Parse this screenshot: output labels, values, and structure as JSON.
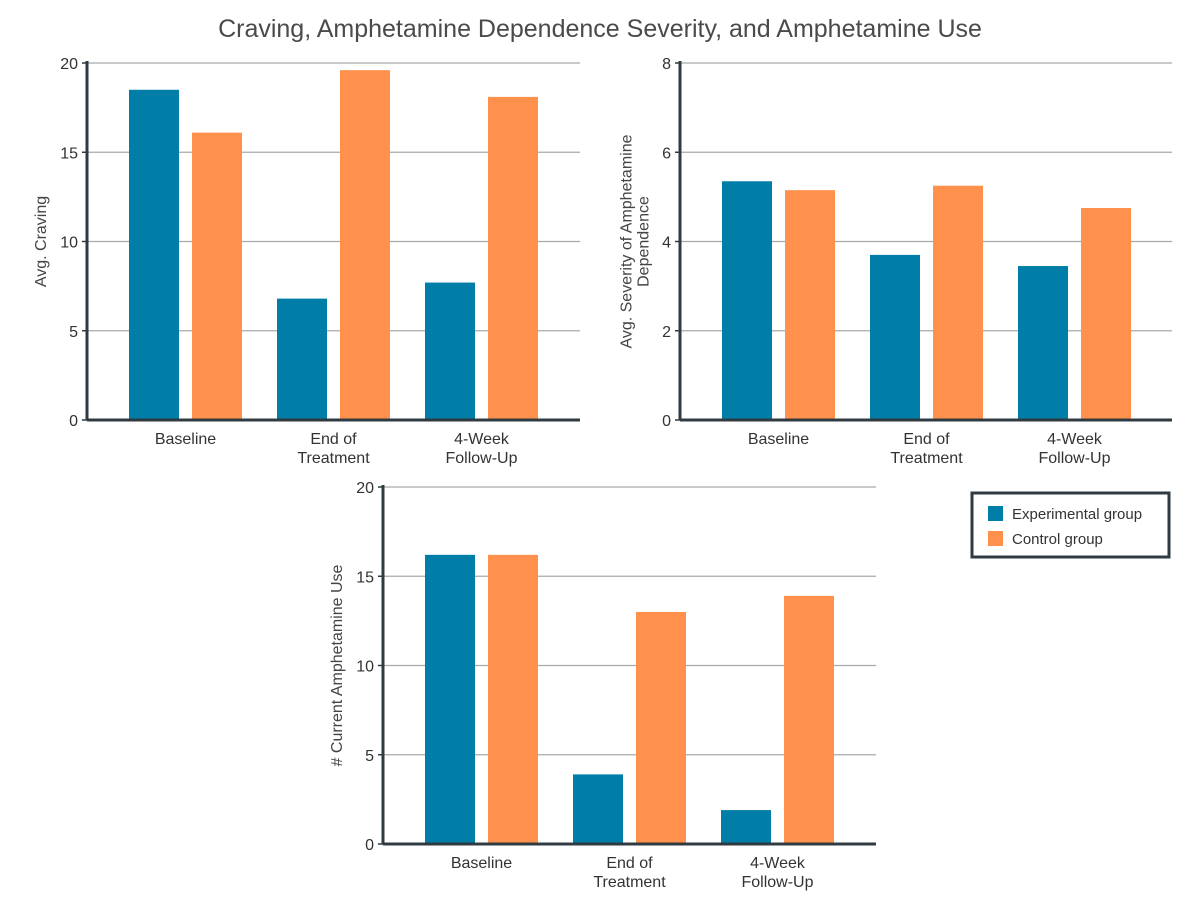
{
  "figure": {
    "title": "Craving, Amphetamine Dependence Severity, and Amphetamine Use",
    "legend": {
      "placement": "right of bottom chart",
      "items": [
        {
          "label": "Experimental group",
          "color": "#007ea7"
        },
        {
          "label": "Control group",
          "color": "#ff914d"
        }
      ]
    }
  },
  "chart_data": [
    {
      "type": "bar",
      "categories": [
        [
          "Baseline"
        ],
        [
          "End of",
          "Treatment"
        ],
        [
          "4-Week",
          "Follow-Up"
        ]
      ],
      "ylabel_lines": [
        "Avg. Craving"
      ],
      "ylim": [
        0,
        20
      ],
      "yticks": [
        0,
        5,
        10,
        15,
        20
      ],
      "grid": true,
      "series": [
        {
          "name": "Experimental group",
          "color": "#007ea7",
          "values": [
            18.5,
            6.8,
            7.7
          ]
        },
        {
          "name": "Control group",
          "color": "#ff914d",
          "values": [
            16.1,
            19.6,
            18.1
          ]
        }
      ]
    },
    {
      "type": "bar",
      "categories": [
        [
          "Baseline"
        ],
        [
          "End of",
          "Treatment"
        ],
        [
          "4-Week",
          "Follow-Up"
        ]
      ],
      "ylabel_lines": [
        "Avg. Severity of Amphetamine",
        "Dependence"
      ],
      "ylim": [
        0,
        8
      ],
      "yticks": [
        0,
        2,
        4,
        6,
        8
      ],
      "grid": true,
      "series": [
        {
          "name": "Experimental group",
          "color": "#007ea7",
          "values": [
            5.35,
            3.7,
            3.45
          ]
        },
        {
          "name": "Control group",
          "color": "#ff914d",
          "values": [
            5.15,
            5.25,
            4.75
          ]
        }
      ]
    },
    {
      "type": "bar",
      "categories": [
        [
          "Baseline"
        ],
        [
          "End of",
          "Treatment"
        ],
        [
          "4-Week",
          "Follow-Up"
        ]
      ],
      "ylabel_lines": [
        "# Current Amphetamine Use"
      ],
      "ylim": [
        0,
        20
      ],
      "yticks": [
        0,
        5,
        10,
        15,
        20
      ],
      "grid": true,
      "series": [
        {
          "name": "Experimental group",
          "color": "#007ea7",
          "values": [
            16.2,
            3.9,
            1.9
          ]
        },
        {
          "name": "Control group",
          "color": "#ff914d",
          "values": [
            16.2,
            13.0,
            13.9
          ]
        }
      ]
    }
  ]
}
